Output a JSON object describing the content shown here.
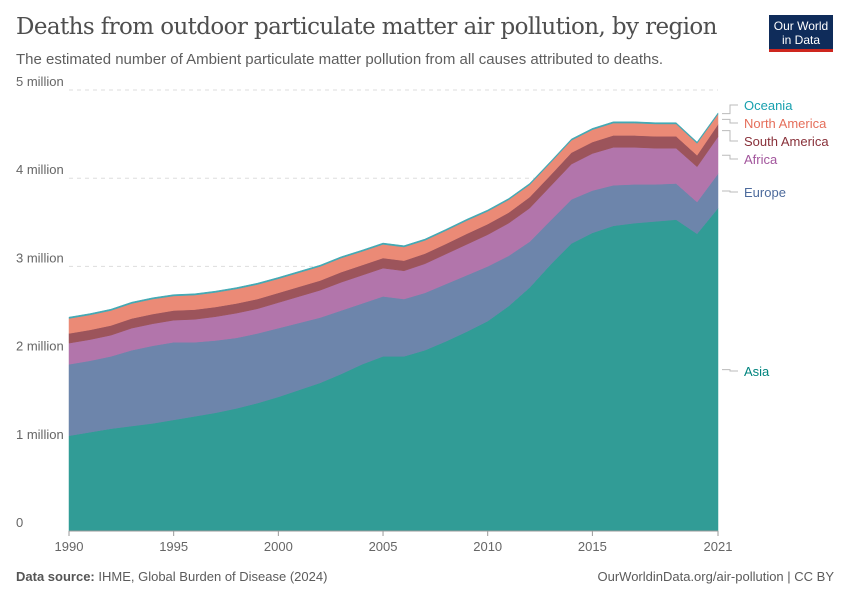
{
  "header": {
    "title": "Deaths from outdoor particulate matter air pollution, by region",
    "subtitle": "The estimated number of Ambient particulate matter pollution from all causes attributed to deaths.",
    "logo_line1": "Our World",
    "logo_line2": "in Data"
  },
  "footer": {
    "source_label": "Data source:",
    "source": "IHME, Global Burden of Disease (2024)",
    "credit": "OurWorldinData.org/air-pollution | CC BY"
  },
  "chart_data": {
    "type": "area",
    "stacked": true,
    "title": "Deaths from outdoor particulate matter air pollution, by region",
    "ylim": [
      0,
      5000000
    ],
    "xlim": [
      1990,
      2021
    ],
    "grid": "horizontal dashed",
    "legend": "right, inline labels",
    "y_ticks": [
      {
        "value": 0,
        "label": "0"
      },
      {
        "value": 1000000,
        "label": "1 million"
      },
      {
        "value": 2000000,
        "label": "2 million"
      },
      {
        "value": 3000000,
        "label": "3 million"
      },
      {
        "value": 4000000,
        "label": "4 million"
      },
      {
        "value": 5000000,
        "label": "5 million"
      }
    ],
    "x_ticks": [
      {
        "value": 1990,
        "label": "1990"
      },
      {
        "value": 1995,
        "label": "1995"
      },
      {
        "value": 2000,
        "label": "2000"
      },
      {
        "value": 2005,
        "label": "2005"
      },
      {
        "value": 2010,
        "label": "2010"
      },
      {
        "value": 2015,
        "label": "2015"
      },
      {
        "value": 2021,
        "label": "2021"
      }
    ],
    "x": [
      1990,
      1991,
      1992,
      1993,
      1994,
      1995,
      1996,
      1997,
      1998,
      1999,
      2000,
      2001,
      2002,
      2003,
      2004,
      2005,
      2006,
      2007,
      2008,
      2009,
      2010,
      2011,
      2012,
      2013,
      2014,
      2015,
      2016,
      2017,
      2018,
      2019,
      2020,
      2021
    ],
    "series": [
      {
        "name": "Asia",
        "color": "#319c96",
        "label_color": "#00847e",
        "values": [
          1080000,
          1120000,
          1160000,
          1190000,
          1220000,
          1260000,
          1300000,
          1340000,
          1390000,
          1450000,
          1520000,
          1600000,
          1680000,
          1780000,
          1890000,
          1980000,
          1980000,
          2050000,
          2150000,
          2260000,
          2380000,
          2550000,
          2760000,
          3020000,
          3260000,
          3380000,
          3460000,
          3490000,
          3510000,
          3530000,
          3370000,
          3660000
        ]
      },
      {
        "name": "Europe",
        "color": "#6d85ab",
        "label_color": "#4c6a9c",
        "values": [
          810000,
          810000,
          820000,
          860000,
          880000,
          880000,
          840000,
          820000,
          800000,
          790000,
          780000,
          760000,
          740000,
          720000,
          690000,
          680000,
          650000,
          650000,
          650000,
          640000,
          620000,
          570000,
          520000,
          500000,
          500000,
          480000,
          460000,
          440000,
          420000,
          410000,
          360000,
          390000
        ]
      },
      {
        "name": "Africa",
        "color": "#b275ab",
        "label_color": "#a2559c",
        "values": [
          240000,
          240000,
          240000,
          250000,
          250000,
          250000,
          260000,
          270000,
          280000,
          280000,
          290000,
          300000,
          310000,
          320000,
          320000,
          320000,
          320000,
          330000,
          340000,
          350000,
          360000,
          370000,
          380000,
          390000,
          400000,
          420000,
          430000,
          420000,
          410000,
          400000,
          400000,
          420000
        ]
      },
      {
        "name": "South America",
        "color": "#9c545b",
        "label_color": "#883039",
        "values": [
          110000,
          110000,
          110000,
          110000,
          110000,
          110000,
          110000,
          110000,
          110000,
          110000,
          110000,
          110000,
          110000,
          115000,
          115000,
          115000,
          115000,
          115000,
          115000,
          120000,
          120000,
          120000,
          125000,
          125000,
          130000,
          130000,
          135000,
          135000,
          135000,
          135000,
          130000,
          140000
        ]
      },
      {
        "name": "North America",
        "color": "#eb8a76",
        "label_color": "#e56e5a",
        "values": [
          170000,
          170000,
          170000,
          170000,
          170000,
          165000,
          165000,
          165000,
          165000,
          165000,
          160000,
          160000,
          160000,
          160000,
          155000,
          155000,
          155000,
          150000,
          150000,
          150000,
          145000,
          145000,
          140000,
          140000,
          140000,
          140000,
          140000,
          140000,
          140000,
          140000,
          135000,
          115000
        ]
      },
      {
        "name": "Oceania",
        "color": "#43a9b4",
        "label_color": "#18a0ae",
        "values": [
          15000,
          15000,
          15000,
          15000,
          15000,
          15000,
          15000,
          15000,
          15000,
          15000,
          15000,
          15000,
          15000,
          15000,
          15000,
          15000,
          15000,
          15000,
          15000,
          15000,
          15000,
          15000,
          15000,
          15000,
          15000,
          15000,
          15000,
          15000,
          15000,
          15000,
          15000,
          15000
        ]
      }
    ]
  }
}
